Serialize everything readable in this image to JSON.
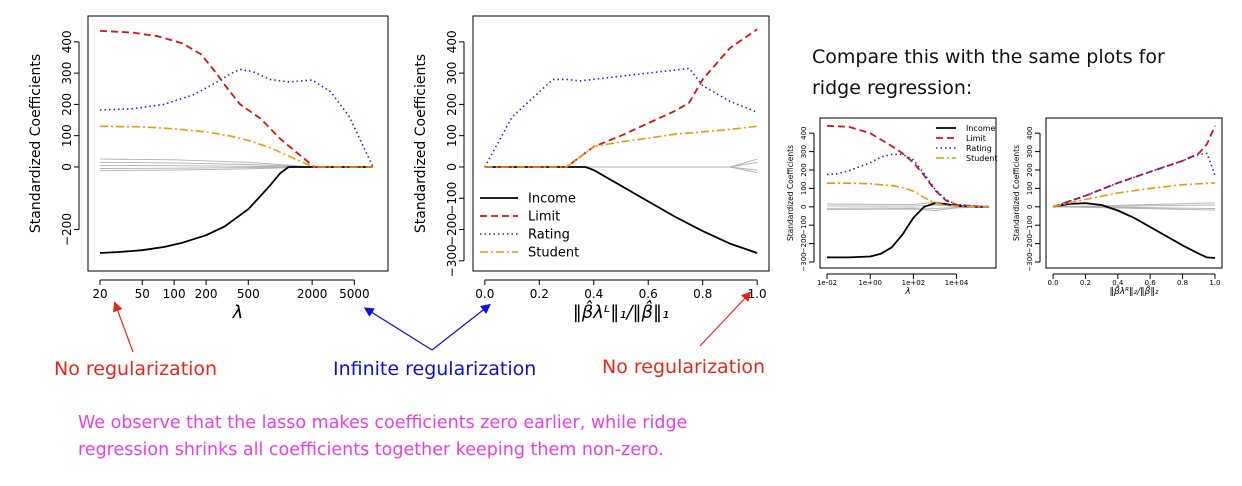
{
  "colors": {
    "income": "#000000",
    "limit": "#dd1111",
    "rating": "#2222ee",
    "student": "#ee9900",
    "other": "#b0b0b0",
    "annotation_red": "#e8271c",
    "annotation_blue": "#1010dd",
    "observation": "#e83ee8"
  },
  "annotations": {
    "no_reg_left": "No regularization",
    "infinite_reg": "Infinite regularization",
    "no_reg_right": "No regularization",
    "compare_line1": "Compare this with the same plots for",
    "compare_line2": "ridge regression:",
    "observation_line1": "We observe that the lasso makes coefficients zero earlier, while ridge",
    "observation_line2": "regression shrinks all coefficients together keeping them non-zero."
  },
  "chart_data": [
    {
      "id": "lasso-lambda",
      "type": "line",
      "xscale": "log",
      "xlim": [
        20,
        8000
      ],
      "ylim": [
        -300,
        450
      ],
      "ylabel": "Standardized Coefficients",
      "xlabel": "λ",
      "xticks": [
        20,
        50,
        100,
        200,
        500,
        2000,
        5000
      ],
      "xtick_labels": [
        "20",
        "50",
        "100",
        "200",
        "500",
        "2000",
        "5000"
      ],
      "yticks": [
        -200,
        0,
        100,
        200,
        300,
        400
      ],
      "ytick_labels": [
        "−200",
        "0",
        "100",
        "200",
        "300",
        "400"
      ],
      "series": [
        {
          "name": "Income",
          "style": "solid",
          "x": [
            20,
            30,
            50,
            80,
            120,
            200,
            300,
            500,
            800,
            1000,
            1200
          ],
          "y": [
            -275,
            -272,
            -266,
            -256,
            -242,
            -218,
            -190,
            -135,
            -60,
            -20,
            0
          ]
        },
        {
          "name": "Income-zero",
          "style": "solid",
          "x": [
            1200,
            7500
          ],
          "y": [
            0,
            0
          ]
        },
        {
          "name": "Limit",
          "style": "dashed",
          "x": [
            20,
            40,
            70,
            120,
            180,
            250,
            320,
            420,
            650,
            1000,
            1500,
            2100,
            3000,
            7500
          ],
          "y": [
            435,
            430,
            418,
            395,
            360,
            300,
            250,
            200,
            155,
            90,
            40,
            0,
            0,
            0
          ]
        },
        {
          "name": "Rating",
          "style": "dotted",
          "x": [
            20,
            40,
            80,
            150,
            250,
            350,
            420,
            550,
            800,
            1200,
            2000,
            3000,
            4500,
            6000,
            7500
          ],
          "y": [
            182,
            186,
            200,
            230,
            270,
            300,
            312,
            305,
            280,
            272,
            278,
            240,
            160,
            70,
            0
          ]
        },
        {
          "name": "Student",
          "style": "dashdot",
          "x": [
            20,
            50,
            100,
            200,
            350,
            500,
            800,
            1200,
            1700,
            2100,
            7500
          ],
          "y": [
            130,
            128,
            122,
            112,
            98,
            85,
            62,
            35,
            12,
            0,
            0
          ]
        }
      ],
      "other_series": [
        {
          "x": [
            20,
            100,
            500,
            2000
          ],
          "y": [
            25,
            23,
            15,
            0
          ]
        },
        {
          "x": [
            20,
            100,
            500,
            2000
          ],
          "y": [
            15,
            13,
            8,
            0
          ]
        },
        {
          "x": [
            20,
            100,
            500,
            2000
          ],
          "y": [
            5,
            4,
            2,
            0
          ]
        },
        {
          "x": [
            20,
            100,
            500,
            2000
          ],
          "y": [
            -5,
            -4,
            -2,
            0
          ]
        },
        {
          "x": [
            20,
            100,
            500,
            2000
          ],
          "y": [
            -12,
            -10,
            -6,
            0
          ]
        }
      ]
    },
    {
      "id": "lasso-norm",
      "type": "line",
      "xlim": [
        0,
        1
      ],
      "ylim": [
        -300,
        450
      ],
      "ylabel": "Standardized Coefficients",
      "xlabel": "‖β̂λᴸ‖₁/‖β̂‖₁",
      "xticks": [
        0,
        0.2,
        0.4,
        0.6,
        0.8,
        1.0
      ],
      "xtick_labels": [
        "0.0",
        "0.2",
        "0.4",
        "0.6",
        "0.8",
        "1.0"
      ],
      "yticks": [
        -300,
        -200,
        -100,
        0,
        100,
        200,
        300,
        400
      ],
      "ytick_labels": [
        "−300",
        "−200",
        "−100",
        "0",
        "100",
        "200",
        "300",
        "400"
      ],
      "legend": [
        "Income",
        "Limit",
        "Rating",
        "Student"
      ],
      "series": [
        {
          "name": "Income",
          "style": "solid",
          "x": [
            0,
            0.37,
            0.4,
            0.5,
            0.6,
            0.7,
            0.8,
            0.9,
            1.0
          ],
          "y": [
            0,
            0,
            -10,
            -60,
            -110,
            -160,
            -205,
            -245,
            -275
          ]
        },
        {
          "name": "Limit",
          "style": "dashed",
          "x": [
            0,
            0.3,
            0.4,
            0.5,
            0.6,
            0.7,
            0.75,
            0.8,
            0.9,
            1.0
          ],
          "y": [
            0,
            0,
            65,
            100,
            140,
            180,
            205,
            280,
            380,
            440
          ]
        },
        {
          "name": "Rating",
          "style": "dotted",
          "x": [
            0,
            0.05,
            0.1,
            0.2,
            0.25,
            0.3,
            0.35,
            0.5,
            0.6,
            0.7,
            0.75,
            0.8,
            0.9,
            1.0
          ],
          "y": [
            0,
            80,
            160,
            240,
            280,
            280,
            275,
            290,
            300,
            310,
            315,
            260,
            210,
            175
          ]
        },
        {
          "name": "Student",
          "style": "dashdot",
          "x": [
            0,
            0.3,
            0.4,
            0.5,
            0.6,
            0.7,
            0.8,
            0.9,
            1.0
          ],
          "y": [
            0,
            0,
            65,
            80,
            92,
            105,
            112,
            120,
            130
          ]
        }
      ],
      "other_series": [
        {
          "x": [
            0,
            0.9,
            1.0
          ],
          "y": [
            0,
            0,
            25
          ]
        },
        {
          "x": [
            0,
            0.9,
            1.0
          ],
          "y": [
            0,
            0,
            15
          ]
        },
        {
          "x": [
            0,
            0.9,
            1.0
          ],
          "y": [
            0,
            0,
            -10
          ]
        },
        {
          "x": [
            0,
            0.9,
            1.0
          ],
          "y": [
            0,
            0,
            -18
          ]
        }
      ]
    },
    {
      "id": "ridge-lambda",
      "type": "line",
      "xscale": "log10",
      "xlim": [
        -2,
        5.5
      ],
      "ylim": [
        -300,
        450
      ],
      "ylabel": "Standardized Coefficients",
      "xlabel": "λ",
      "xticks": [
        -2,
        0,
        2,
        4
      ],
      "xtick_labels": [
        "1e-02",
        "1e+00",
        "1e+02",
        "1e+04"
      ],
      "yticks": [
        -300,
        -200,
        -100,
        0,
        100,
        200,
        300,
        400
      ],
      "ytick_labels": [
        "−300",
        "−200",
        "−100",
        "0",
        "100",
        "200",
        "300",
        "400"
      ],
      "legend": [
        "Income",
        "Limit",
        "Rating",
        "Student"
      ],
      "series": [
        {
          "name": "Income",
          "style": "solid",
          "x": [
            -2,
            -1,
            0,
            0.5,
            1,
            1.5,
            2,
            2.5,
            3,
            3.5,
            4,
            4.5,
            5,
            5.5
          ],
          "y": [
            -275,
            -275,
            -270,
            -255,
            -220,
            -150,
            -60,
            0,
            20,
            15,
            5,
            2,
            0,
            0
          ]
        },
        {
          "name": "Limit",
          "style": "dashed",
          "x": [
            -2,
            -1,
            0,
            1,
            1.5,
            2,
            2.5,
            3,
            3.5,
            4,
            5,
            5.5
          ],
          "y": [
            440,
            435,
            400,
            330,
            290,
            240,
            170,
            90,
            35,
            10,
            2,
            0
          ]
        },
        {
          "name": "Rating",
          "style": "dotted",
          "x": [
            -2,
            -1.5,
            -1,
            0,
            0.5,
            1,
            1.5,
            2,
            2.5,
            3,
            3.5,
            4,
            5,
            5.5
          ],
          "y": [
            175,
            180,
            195,
            240,
            270,
            285,
            285,
            255,
            180,
            95,
            40,
            12,
            2,
            0
          ]
        },
        {
          "name": "Student",
          "style": "dashdot",
          "x": [
            -2,
            -1,
            0,
            1,
            1.5,
            2,
            2.5,
            3,
            3.5,
            4,
            5,
            5.5
          ],
          "y": [
            128,
            128,
            125,
            115,
            105,
            85,
            50,
            22,
            8,
            3,
            0,
            0
          ]
        }
      ],
      "other_series": [
        {
          "x": [
            -2,
            2,
            3,
            4,
            5.5
          ],
          "y": [
            15,
            12,
            25,
            8,
            0
          ]
        },
        {
          "x": [
            -2,
            2,
            3,
            4,
            5.5
          ],
          "y": [
            5,
            4,
            10,
            3,
            0
          ]
        },
        {
          "x": [
            -2,
            2,
            3,
            4,
            5.5
          ],
          "y": [
            -8,
            -6,
            -10,
            -3,
            0
          ]
        },
        {
          "x": [
            -2,
            2,
            3,
            4,
            5.5
          ],
          "y": [
            -15,
            -12,
            -20,
            -6,
            0
          ]
        }
      ]
    },
    {
      "id": "ridge-norm",
      "type": "line",
      "xlim": [
        0,
        1
      ],
      "ylim": [
        -300,
        450
      ],
      "ylabel": "Standardized Coefficients",
      "xlabel": "‖β̂λᴿ‖₂/‖β̂‖₂",
      "xticks": [
        0,
        0.2,
        0.4,
        0.6,
        0.8,
        1.0
      ],
      "xtick_labels": [
        "0.0",
        "0.2",
        "0.4",
        "0.6",
        "0.8",
        "1.0"
      ],
      "yticks": [
        -300,
        -200,
        -100,
        0,
        100,
        200,
        300,
        400
      ],
      "ytick_labels": [
        "−300",
        "−200",
        "−100",
        "0",
        "100",
        "200",
        "300",
        "400"
      ],
      "series": [
        {
          "name": "Income",
          "style": "solid",
          "x": [
            0,
            0.1,
            0.2,
            0.3,
            0.4,
            0.5,
            0.6,
            0.7,
            0.8,
            0.9,
            0.95,
            1.0
          ],
          "y": [
            0,
            15,
            20,
            10,
            -20,
            -60,
            -110,
            -160,
            -210,
            -255,
            -275,
            -278
          ]
        },
        {
          "name": "Limit",
          "style": "dashed",
          "x": [
            0,
            0.2,
            0.4,
            0.6,
            0.8,
            0.9,
            0.95,
            1.0
          ],
          "y": [
            0,
            60,
            130,
            190,
            250,
            290,
            340,
            440
          ]
        },
        {
          "name": "Rating",
          "style": "dotted",
          "x": [
            0,
            0.2,
            0.4,
            0.6,
            0.8,
            0.9,
            0.95,
            0.98,
            1.0
          ],
          "y": [
            0,
            60,
            130,
            190,
            250,
            285,
            290,
            220,
            170
          ]
        },
        {
          "name": "Student",
          "style": "dashdot",
          "x": [
            0,
            0.2,
            0.4,
            0.6,
            0.8,
            1.0
          ],
          "y": [
            0,
            40,
            75,
            100,
            120,
            130
          ]
        }
      ],
      "other_series": [
        {
          "x": [
            0,
            0.5,
            1.0
          ],
          "y": [
            0,
            10,
            22
          ]
        },
        {
          "x": [
            0,
            0.5,
            1.0
          ],
          "y": [
            0,
            4,
            10
          ]
        },
        {
          "x": [
            0,
            0.5,
            1.0
          ],
          "y": [
            0,
            -4,
            -10
          ]
        },
        {
          "x": [
            0,
            0.5,
            1.0
          ],
          "y": [
            0,
            -8,
            -18
          ]
        }
      ]
    }
  ]
}
